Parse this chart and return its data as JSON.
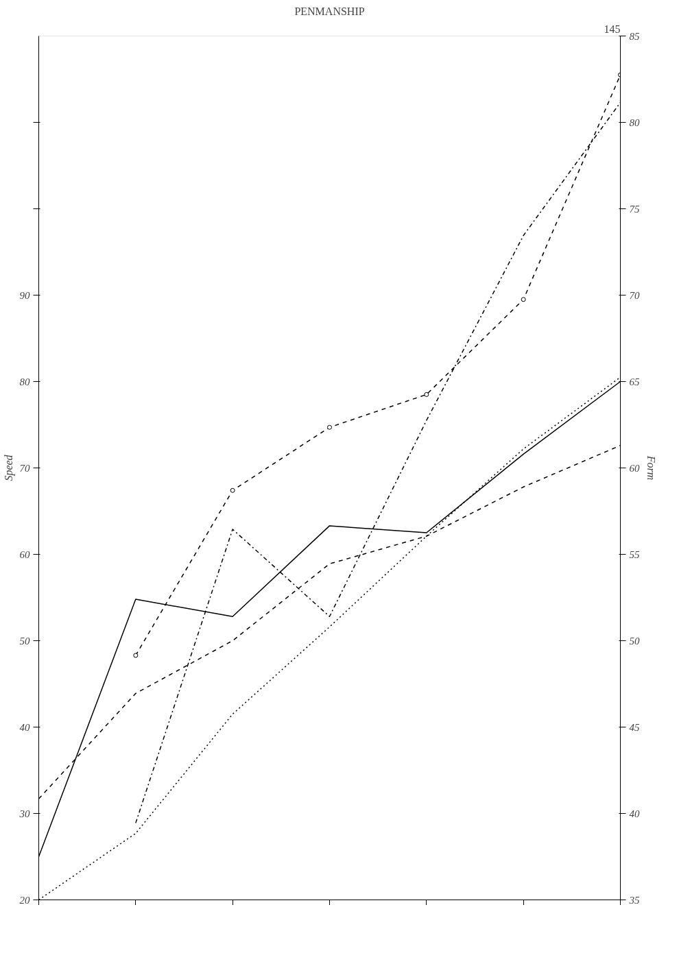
{
  "chart_data": {
    "type": "line",
    "title": "PENMANSHIP",
    "annotations": [
      "145"
    ],
    "ylabel": "Speed",
    "y2label": "Form",
    "categories": [
      null,
      null,
      null,
      null,
      null,
      null,
      null
    ],
    "ylim": [
      20,
      120
    ],
    "yticks": [
      20,
      30,
      40,
      50,
      60,
      70,
      80,
      90,
      {
        "value": 100,
        "label": null
      },
      {
        "value": 110,
        "label": null
      }
    ],
    "y2lim": [
      35,
      85
    ],
    "y2ticks": [
      35,
      40,
      45,
      50,
      55,
      60,
      65,
      70,
      75,
      80,
      85
    ],
    "tick_labels": "y",
    "grid": false,
    "marker": "none",
    "series": [
      {
        "color": "#000000",
        "line_style": "solid",
        "values": [
          25,
          54.8,
          52.8,
          63.3,
          62.5,
          71.6,
          80
        ]
      },
      {
        "color": "#000000",
        "line_style": "dashed",
        "values": [
          31.7,
          43.9,
          50,
          58.9,
          62.1,
          67.8,
          72.6
        ]
      },
      {
        "color": "#000000",
        "line_style": "dotted",
        "values": [
          20,
          27.7,
          41.5,
          51.6,
          62.1,
          72.2,
          80.5
        ]
      },
      {
        "color": "#000000",
        "line_style": "dashdot",
        "values": [
          null,
          28.9,
          62.9,
          52.8,
          75.5,
          96.9,
          112.3
        ]
      },
      {
        "color": "#000000",
        "line_style": "dashed",
        "marker": "circle",
        "values": [
          null,
          48.3,
          67.4,
          74.7,
          78.5,
          89.5,
          115.5
        ]
      }
    ]
  }
}
